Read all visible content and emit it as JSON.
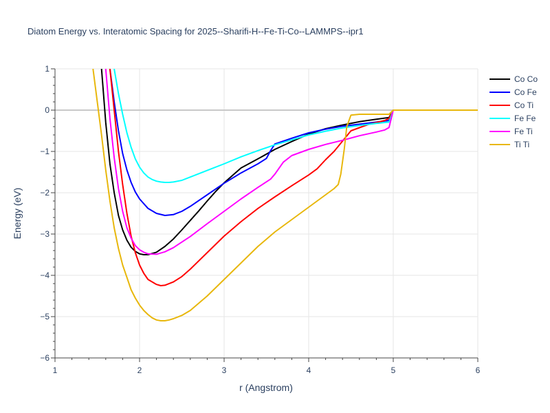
{
  "chart_data": {
    "type": "line",
    "title": "Diatom Energy vs. Interatomic Spacing for 2025--Sharifi-H--Fe-Ti-Co--LAMMPS--ipr1",
    "xlabel": "r (Angstrom)",
    "ylabel": "Energy (eV)",
    "xlim": [
      1,
      6
    ],
    "ylim": [
      -6,
      1
    ],
    "xticks": [
      "1",
      "2",
      "3",
      "4",
      "5",
      "6"
    ],
    "yticks": [
      "1",
      "0",
      "−1",
      "−2",
      "−3",
      "−4",
      "−5",
      "−6"
    ],
    "grid": true,
    "legend_position": "top-right, outside plot",
    "series": [
      {
        "name": "Co Co",
        "color": "#000000",
        "x": [
          1.55,
          1.6,
          1.65,
          1.7,
          1.75,
          1.8,
          1.85,
          1.9,
          1.95,
          2.0,
          2.05,
          2.1,
          2.2,
          2.3,
          2.4,
          2.5,
          2.6,
          2.7,
          2.8,
          2.9,
          3.0,
          3.2,
          3.4,
          3.6,
          3.8,
          4.0,
          4.2,
          4.4,
          4.6,
          4.8,
          4.95,
          5.0,
          5.5,
          6.0
        ],
        "y": [
          1.0,
          -0.3,
          -1.3,
          -2.0,
          -2.55,
          -2.9,
          -3.15,
          -3.32,
          -3.42,
          -3.48,
          -3.5,
          -3.5,
          -3.44,
          -3.3,
          -3.12,
          -2.9,
          -2.67,
          -2.44,
          -2.2,
          -1.97,
          -1.76,
          -1.4,
          -1.18,
          -0.95,
          -0.76,
          -0.58,
          -0.45,
          -0.36,
          -0.28,
          -0.22,
          -0.18,
          0,
          0,
          0
        ]
      },
      {
        "name": "Co Fe",
        "color": "#0000ff",
        "x": [
          1.65,
          1.7,
          1.75,
          1.8,
          1.85,
          1.9,
          1.95,
          2.0,
          2.1,
          2.2,
          2.3,
          2.4,
          2.5,
          2.6,
          2.8,
          3.0,
          3.2,
          3.4,
          3.5,
          3.55,
          3.6,
          3.8,
          4.0,
          4.2,
          4.4,
          4.6,
          4.8,
          4.95,
          5.0,
          5.5,
          6.0
        ],
        "y": [
          1.0,
          0.2,
          -0.5,
          -1.05,
          -1.45,
          -1.75,
          -1.98,
          -2.15,
          -2.38,
          -2.5,
          -2.55,
          -2.53,
          -2.45,
          -2.33,
          -2.05,
          -1.77,
          -1.52,
          -1.3,
          -1.17,
          -0.98,
          -0.82,
          -0.68,
          -0.55,
          -0.46,
          -0.39,
          -0.34,
          -0.29,
          -0.25,
          0,
          0,
          0
        ]
      },
      {
        "name": "Co Ti",
        "color": "#ff0000",
        "x": [
          1.65,
          1.7,
          1.75,
          1.8,
          1.85,
          1.9,
          1.95,
          2.0,
          2.05,
          2.1,
          2.2,
          2.25,
          2.3,
          2.4,
          2.5,
          2.6,
          2.8,
          3.0,
          3.2,
          3.4,
          3.6,
          3.8,
          4.0,
          4.1,
          4.2,
          4.3,
          4.5,
          4.7,
          4.9,
          4.95,
          5.0,
          5.5,
          6.0
        ],
        "y": [
          1.0,
          0.0,
          -1.0,
          -1.8,
          -2.5,
          -3.05,
          -3.45,
          -3.75,
          -3.95,
          -4.1,
          -4.22,
          -4.25,
          -4.24,
          -4.16,
          -4.03,
          -3.85,
          -3.45,
          -3.05,
          -2.7,
          -2.38,
          -2.1,
          -1.83,
          -1.57,
          -1.42,
          -1.2,
          -1.0,
          -0.5,
          -0.35,
          -0.25,
          -0.2,
          0,
          0,
          0
        ]
      },
      {
        "name": "Fe Fe",
        "color": "#00ffff",
        "x": [
          1.7,
          1.75,
          1.8,
          1.85,
          1.9,
          1.95,
          2.0,
          2.05,
          2.1,
          2.15,
          2.2,
          2.25,
          2.3,
          2.35,
          2.4,
          2.45,
          2.5,
          2.6,
          2.8,
          3.0,
          3.2,
          3.4,
          3.6,
          3.8,
          4.0,
          4.2,
          4.4,
          4.6,
          4.8,
          4.95,
          5.0,
          5.5,
          6.0
        ],
        "y": [
          1.0,
          0.4,
          -0.1,
          -0.55,
          -0.9,
          -1.18,
          -1.38,
          -1.52,
          -1.62,
          -1.68,
          -1.72,
          -1.74,
          -1.75,
          -1.75,
          -1.74,
          -1.72,
          -1.7,
          -1.62,
          -1.46,
          -1.3,
          -1.13,
          -0.98,
          -0.84,
          -0.72,
          -0.6,
          -0.51,
          -0.43,
          -0.37,
          -0.32,
          -0.29,
          0,
          0,
          0
        ]
      },
      {
        "name": "Fe Ti",
        "color": "#ff00ff",
        "x": [
          1.6,
          1.65,
          1.7,
          1.75,
          1.8,
          1.85,
          1.9,
          1.95,
          2.0,
          2.05,
          2.1,
          2.2,
          2.3,
          2.4,
          2.6,
          2.8,
          3.0,
          3.2,
          3.4,
          3.55,
          3.6,
          3.7,
          3.8,
          4.0,
          4.2,
          4.4,
          4.6,
          4.8,
          4.9,
          4.95,
          5.0,
          5.5,
          6.0
        ],
        "y": [
          1.0,
          -0.2,
          -1.15,
          -1.9,
          -2.45,
          -2.85,
          -3.1,
          -3.28,
          -3.38,
          -3.44,
          -3.48,
          -3.49,
          -3.43,
          -3.33,
          -3.06,
          -2.75,
          -2.45,
          -2.15,
          -1.87,
          -1.67,
          -1.55,
          -1.26,
          -1.1,
          -0.95,
          -0.83,
          -0.73,
          -0.62,
          -0.53,
          -0.48,
          -0.42,
          0,
          0,
          0
        ]
      },
      {
        "name": "Ti Ti",
        "color": "#e8b70c",
        "x": [
          1.45,
          1.5,
          1.55,
          1.6,
          1.65,
          1.7,
          1.75,
          1.8,
          1.85,
          1.9,
          1.95,
          2.0,
          2.05,
          2.1,
          2.15,
          2.2,
          2.25,
          2.3,
          2.35,
          2.4,
          2.5,
          2.6,
          2.8,
          3.0,
          3.2,
          3.4,
          3.6,
          3.8,
          4.0,
          4.2,
          4.3,
          4.35,
          4.38,
          4.42,
          4.45,
          4.5,
          4.6,
          4.8,
          4.95,
          5.0,
          5.5,
          6.0
        ],
        "y": [
          1.0,
          0.2,
          -0.6,
          -1.45,
          -2.2,
          -2.85,
          -3.35,
          -3.75,
          -4.05,
          -4.35,
          -4.55,
          -4.72,
          -4.85,
          -4.95,
          -5.03,
          -5.08,
          -5.1,
          -5.1,
          -5.08,
          -5.05,
          -4.97,
          -4.85,
          -4.5,
          -4.1,
          -3.7,
          -3.3,
          -2.95,
          -2.65,
          -2.35,
          -2.05,
          -1.9,
          -1.8,
          -1.55,
          -0.95,
          -0.4,
          -0.12,
          -0.1,
          -0.1,
          -0.1,
          0,
          0,
          0
        ]
      }
    ]
  }
}
